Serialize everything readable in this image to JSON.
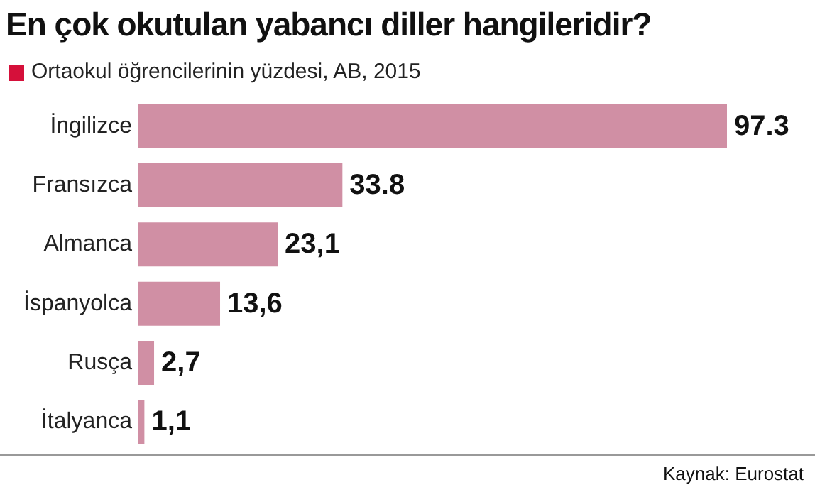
{
  "chart_data": {
    "type": "bar",
    "orientation": "horizontal",
    "title": "En çok okutulan yabancı diller hangileridir?",
    "subtitle": "Ortaokul öğrencilerinin yüzdesi, AB, 2015",
    "categories": [
      "İngilizce",
      "Fransızca",
      "Almanca",
      "İspanyolca",
      "Rusça",
      "İtalyanca"
    ],
    "values": [
      97.3,
      33.8,
      23.1,
      13.6,
      2.7,
      1.1
    ],
    "value_labels": [
      "97.3",
      "33.8",
      "23,1",
      "13,6",
      "2,7",
      "1,1"
    ],
    "color": "#d08fa4",
    "annotations": [
      "Kaynak: Eurostat"
    ]
  }
}
